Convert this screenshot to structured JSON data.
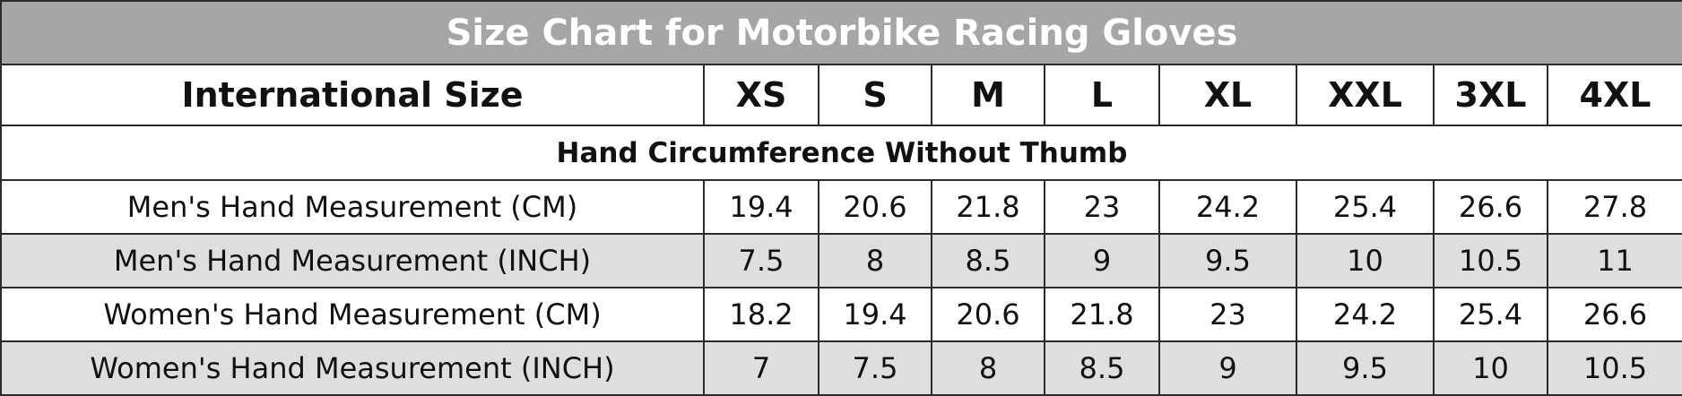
{
  "title": "Size Chart for Motorbike Racing Gloves",
  "header": {
    "label": "International Size",
    "sizes": [
      "XS",
      "S",
      "M",
      "L",
      "XL",
      "XXL",
      "3XL",
      "4XL"
    ]
  },
  "section": "Hand Circumference Without Thumb",
  "rows": [
    {
      "label": "Men's Hand Measurement (CM)",
      "values": [
        "19.4",
        "20.6",
        "21.8",
        "23",
        "24.2",
        "25.4",
        "26.6",
        "27.8"
      ]
    },
    {
      "label": "Men's Hand Measurement (INCH)",
      "values": [
        "7.5",
        "8",
        "8.5",
        "9",
        "9.5",
        "10",
        "10.5",
        "11"
      ]
    },
    {
      "label": "Women's Hand Measurement (CM)",
      "values": [
        "18.2",
        "19.4",
        "20.6",
        "21.8",
        "23",
        "24.2",
        "25.4",
        "26.6"
      ]
    },
    {
      "label": "Women's Hand Measurement (INCH)",
      "values": [
        "7",
        "7.5",
        "8",
        "8.5",
        "9",
        "9.5",
        "10",
        "10.5"
      ]
    }
  ]
}
